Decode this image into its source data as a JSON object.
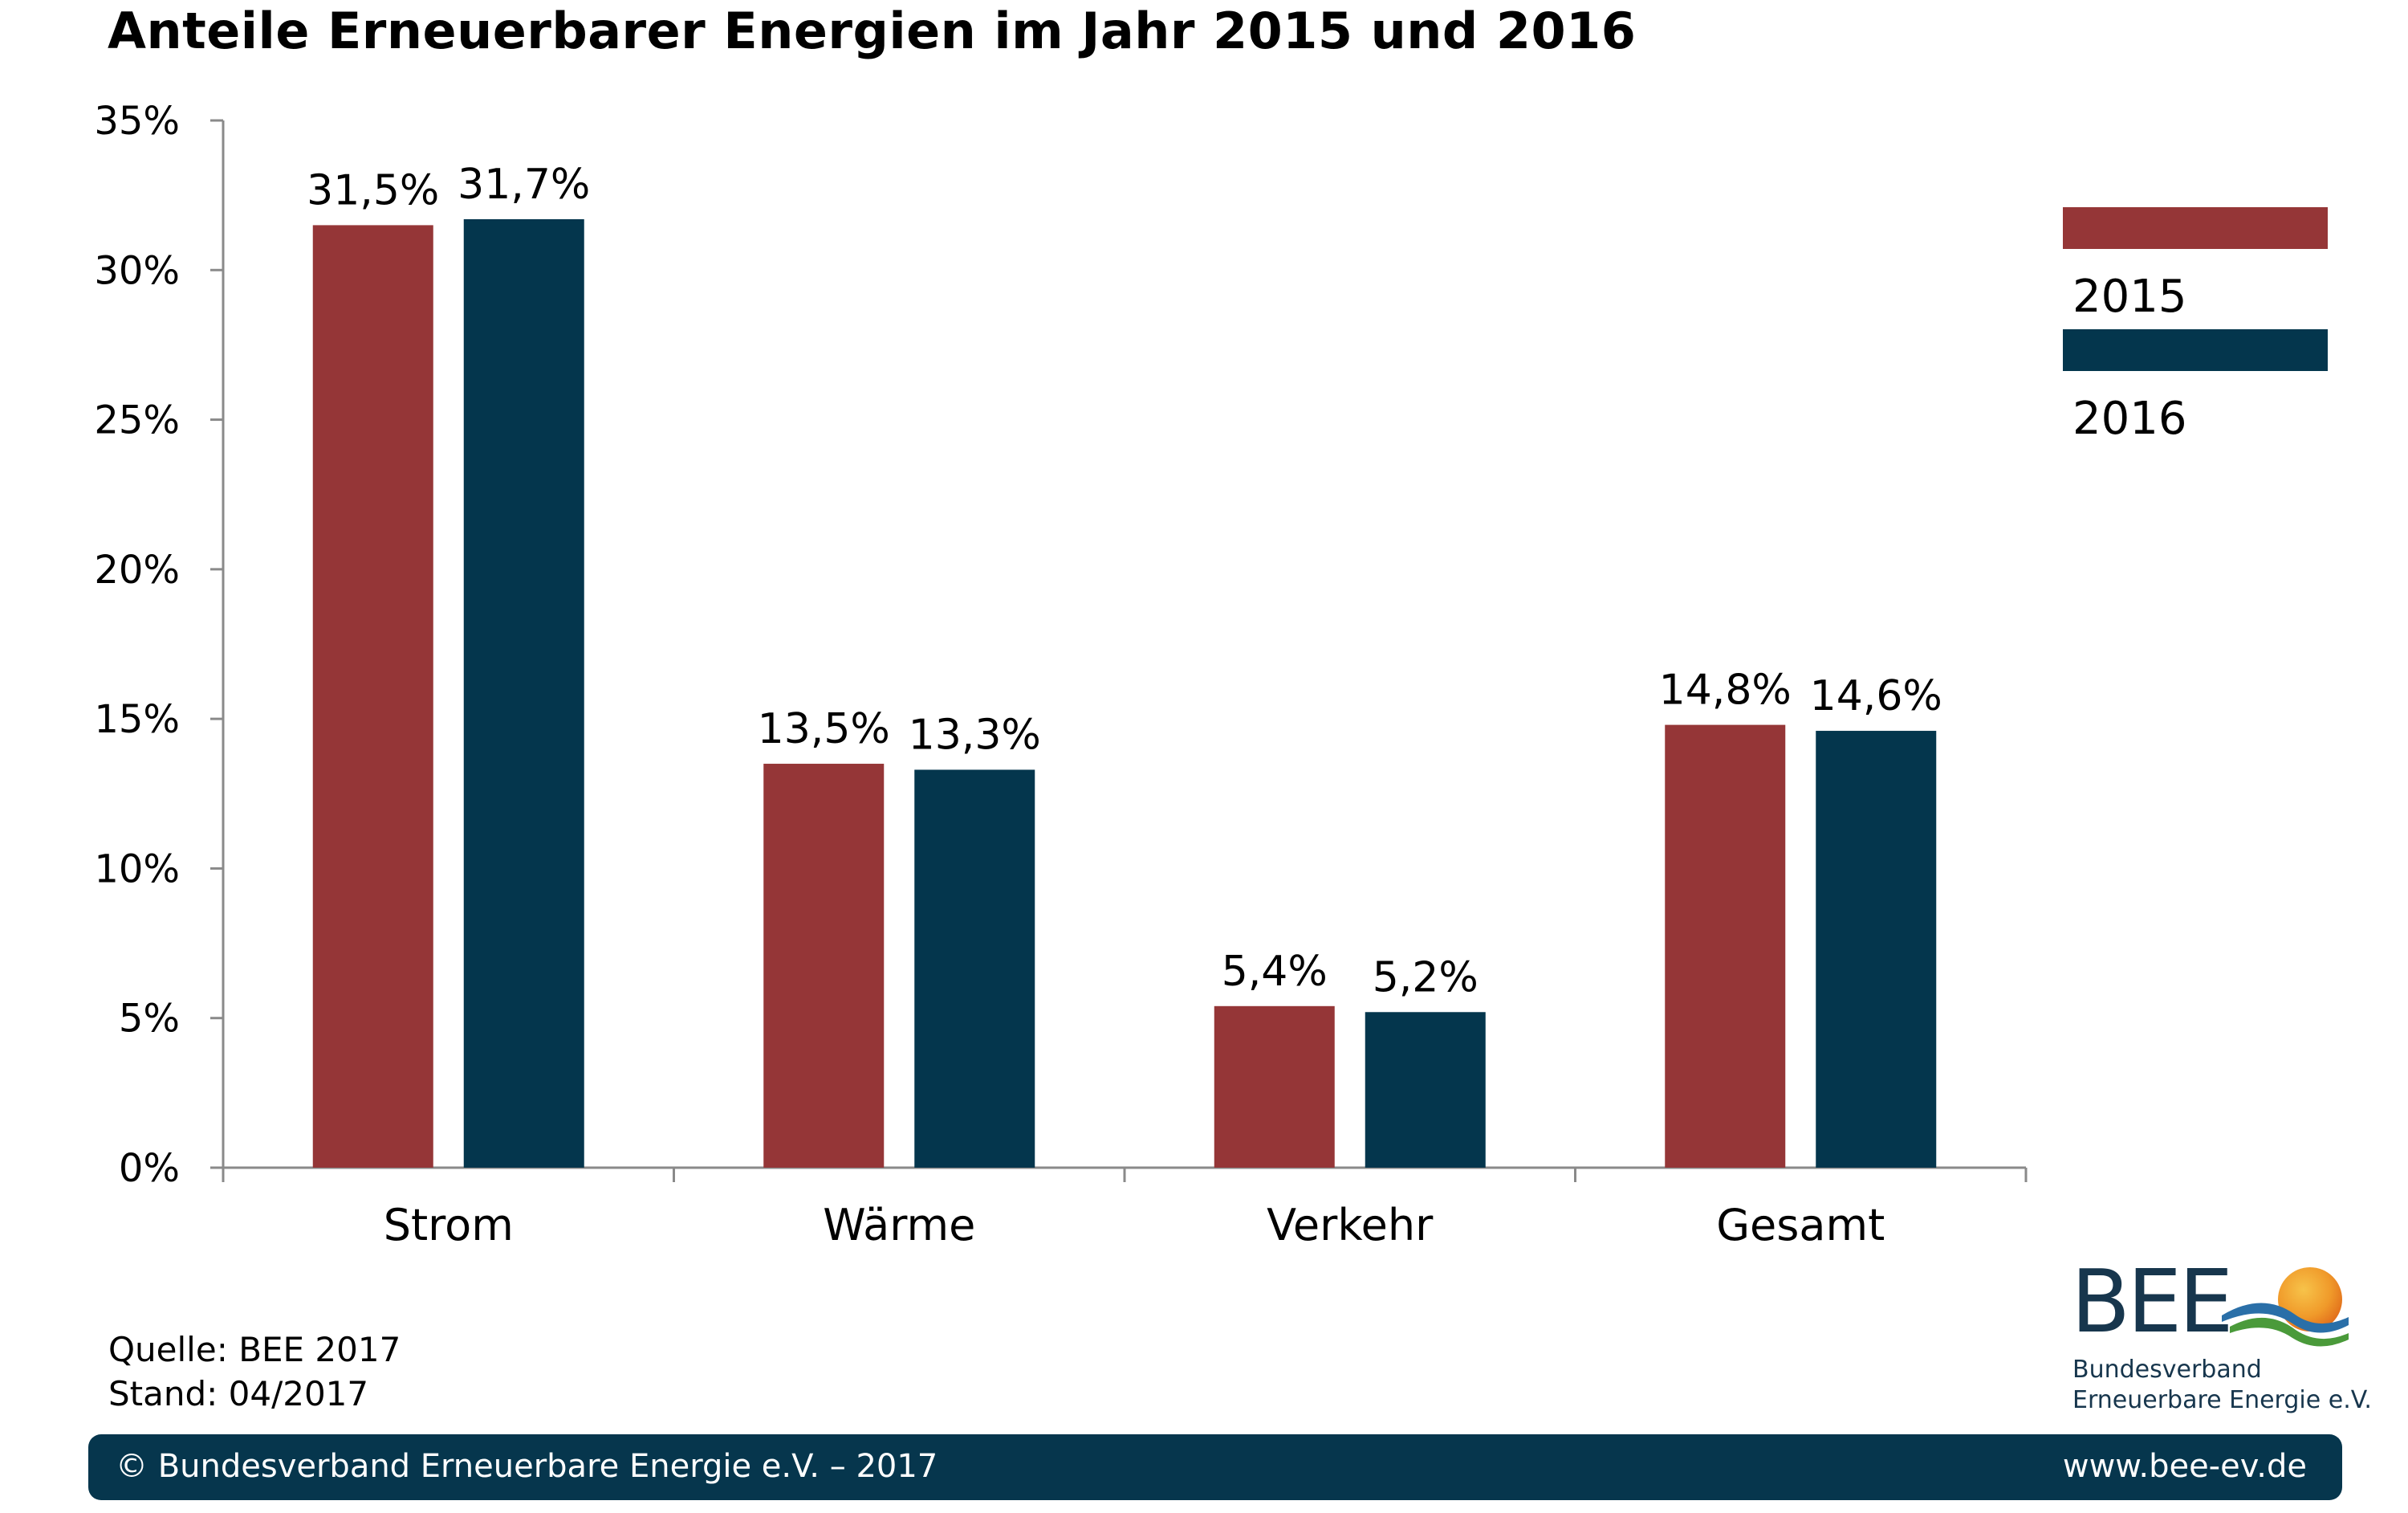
{
  "title": "Anteile Erneuerbarer Energien im Jahr 2015 und 2016",
  "chart_data": {
    "type": "bar",
    "title": "Anteile Erneuerbarer Energien im Jahr 2015 und 2016",
    "categories": [
      "Strom",
      "Wärme",
      "Verkehr",
      "Gesamt"
    ],
    "series": [
      {
        "name": "2015",
        "color": "#953637",
        "values": [
          31.5,
          13.5,
          5.4,
          14.8
        ],
        "labels": [
          "31,5%",
          "13,5%",
          "5,4%",
          "14,8%"
        ]
      },
      {
        "name": "2016",
        "color": "#04364d",
        "values": [
          31.7,
          13.3,
          5.2,
          14.6
        ],
        "labels": [
          "31,7%",
          "13,3%",
          "5,2%",
          "14,6%"
        ]
      }
    ],
    "ylim": [
      0,
      35
    ],
    "yticks": [
      0,
      5,
      10,
      15,
      20,
      25,
      30,
      35
    ],
    "ytick_labels": [
      "0%",
      "5%",
      "10%",
      "15%",
      "20%",
      "25%",
      "30%",
      "35%"
    ],
    "xlabel": "",
    "ylabel": "",
    "grid": false,
    "legend_position": "top-right"
  },
  "source": "Quelle: BEE 2017",
  "stand": "Stand: 04/2017",
  "logo": {
    "text": "BEE",
    "org_line1": "Bundesverband",
    "org_line2": "Erneuerbare Energie e.V."
  },
  "footer": {
    "copyright": "© Bundesverband Erneuerbare Energie e.V. – 2017",
    "url": "www.bee-ev.de"
  },
  "colors": {
    "accent_2015": "#953637",
    "accent_2016": "#04364d",
    "footer_bg": "#06364d"
  }
}
